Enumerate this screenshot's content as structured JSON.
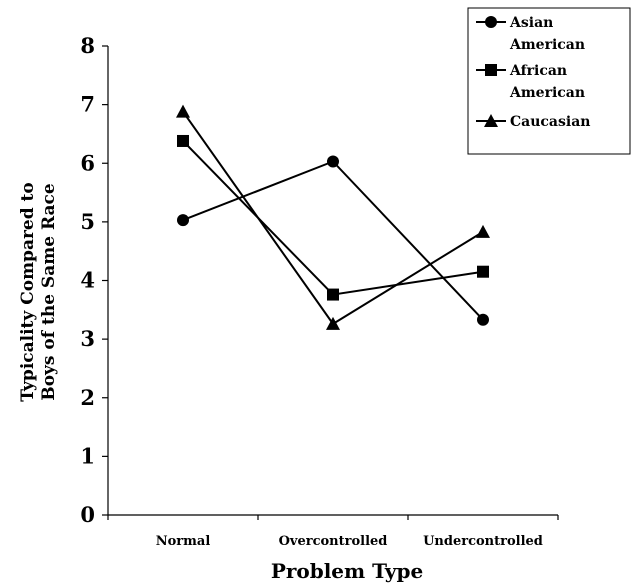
{
  "chart_data": {
    "type": "line",
    "xlabel": "Problem Type",
    "ylabel_line1": "Typicality Compared to",
    "ylabel_line2": "Boys of the Same Race",
    "categories": [
      "Normal",
      "Overcontrolled",
      "Undercontrolled"
    ],
    "ylim": [
      0,
      8
    ],
    "yticks": [
      0,
      1,
      2,
      3,
      4,
      5,
      6,
      7,
      8
    ],
    "grid": false,
    "legend_position": "top-right",
    "series": [
      {
        "name": "Asian American",
        "legend_lines": [
          "Asian",
          "American"
        ],
        "marker": "circle",
        "values": [
          5.03,
          6.03,
          3.33
        ]
      },
      {
        "name": "African American",
        "legend_lines": [
          "African",
          "American"
        ],
        "marker": "square",
        "values": [
          6.38,
          3.76,
          4.15
        ]
      },
      {
        "name": "Caucasian",
        "legend_lines": [
          "Caucasian"
        ],
        "marker": "triangle",
        "values": [
          6.88,
          3.26,
          4.83
        ]
      }
    ]
  }
}
